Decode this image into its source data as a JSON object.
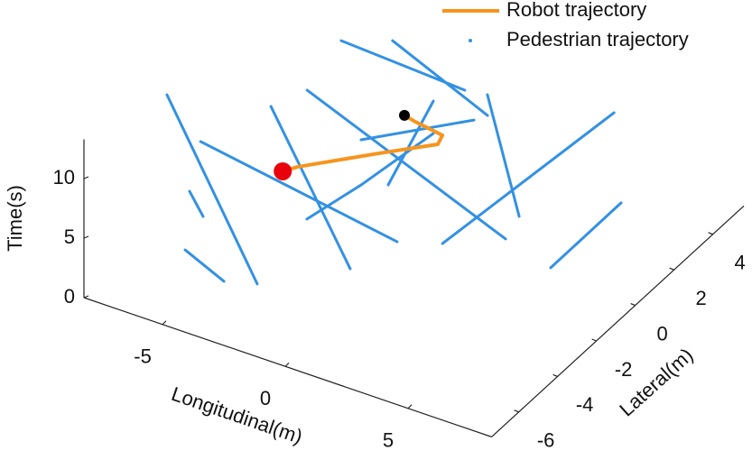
{
  "chart_data": {
    "type": "line3d",
    "xlabel": "Longitudinal(m)",
    "ylabel": "Lateral(m)",
    "zlabel": "Time(s)",
    "xlim": [
      -8.2,
      8.4
    ],
    "ylim": [
      -7.4,
      5.6
    ],
    "zlim": [
      0,
      13.3
    ],
    "xticks": [
      -5,
      0,
      5
    ],
    "yticks": [
      -6,
      -4,
      -2,
      0,
      2,
      4
    ],
    "zticks": [
      0,
      5,
      10
    ],
    "legend": "top-right",
    "series": [
      {
        "name": "Robot trajectory",
        "color": "#f7941d",
        "x": [
          -2.54,
          -2.16,
          -0.03,
          1.57,
          1.53,
          0.4,
          -0.05
        ],
        "y": [
          -4.32,
          -4.02,
          -2.52,
          -1.53,
          -1.24,
          -1.21,
          -1.2
        ],
        "z": [
          10,
          10.2,
          10.6,
          11,
          11.3,
          11.6,
          11.8
        ]
      },
      {
        "name": "Pedestrian trajectory",
        "color": "#3391e3",
        "trajectories": [
          {
            "x": [
              -3.88,
              -0.54
            ],
            "y": [
              0.39,
              2.53
            ],
            "z": [
              13,
              8
            ]
          },
          {
            "x": [
              -2.36,
              0.57
            ],
            "y": [
              1.11,
              2.3
            ],
            "z": [
              13,
              7
            ]
          },
          {
            "x": [
              -7.68,
              -2.73
            ],
            "y": [
              -3.78,
              -5.39
            ],
            "z": [
              12,
              2
            ]
          },
          {
            "x": [
              -5.94,
              0.05
            ],
            "y": [
              -4.25,
              -1.7
            ],
            "z": [
              10,
              2
            ]
          },
          {
            "x": [
              -4.61,
              -0.85
            ],
            "y": [
              -2.31,
              -2.98
            ],
            "z": [
              11,
              1
            ]
          },
          {
            "x": [
              -4.06,
              2.79
            ],
            "y": [
              -1.14,
              0.42
            ],
            "z": [
              11,
              1
            ]
          },
          {
            "x": [
              1.82,
              3.62
            ],
            "y": [
              0.71,
              0.07
            ],
            "z": [
              12,
              4
            ]
          },
          {
            "x": [
              -0.9,
              -0.35
            ],
            "y": [
              -0.96,
              0.67
            ],
            "z": [
              5,
              10
            ]
          },
          {
            "x": [
              1.45,
              6.93
            ],
            "y": [
              -1.14,
              0.77
            ],
            "z": [
              2,
              14
            ]
          },
          {
            "x": [
              5.06,
              7.36
            ],
            "y": [
              -0.13,
              0.59
            ],
            "z": [
              1,
              7
            ]
          },
          {
            "x": [
              -5.59,
              -4.19
            ],
            "y": [
              -5.49,
              -5.26
            ],
            "z": [
              3,
              1
            ]
          },
          {
            "x": [
              -6.2,
              -5.75
            ],
            "y": [
              -4.49,
              -4.36
            ],
            "z": [
              6,
              4
            ]
          },
          {
            "x": [
              -1.24,
              1.47
            ],
            "y": [
              -1.93,
              0.46
            ],
            "z": [
              10,
              10
            ]
          },
          {
            "x": [
              -2.59,
              -0.93,
              0.7
            ],
            "y": [
              -3.01,
              -2.31,
              -0.66
            ],
            "z": [
              4,
              7,
              10
            ]
          }
        ]
      }
    ]
  }
}
